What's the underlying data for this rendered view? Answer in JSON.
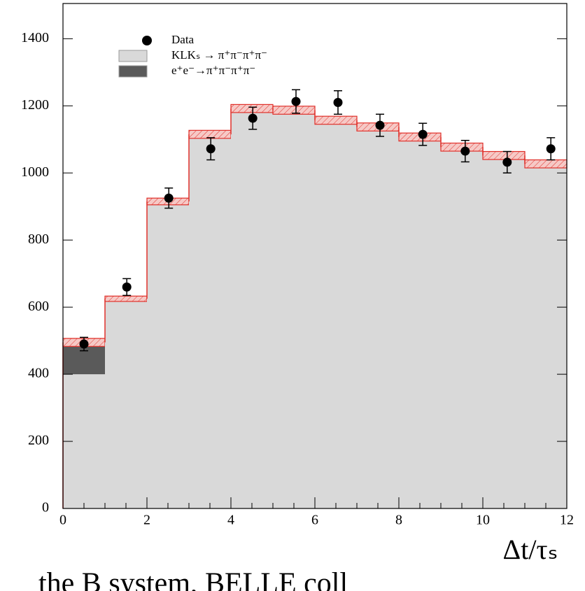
{
  "chart_data": {
    "type": "histogram",
    "bins": [
      0,
      1,
      2,
      3,
      4,
      5,
      6,
      7,
      8,
      9,
      10,
      11,
      12
    ],
    "series": [
      {
        "name": "KLKₛ → π⁺π⁻π⁺π⁻",
        "color": "#d9d9d9",
        "values": [
          400,
          625,
          915,
          1115,
          1192,
          1187,
          1157,
          1137,
          1107,
          1077,
          1052,
          1027
        ]
      },
      {
        "name": "e⁺e⁻→π⁺π⁻π⁺π⁻",
        "color": "#5a5a5a",
        "values": [
          95,
          0,
          0,
          0,
          0,
          0,
          0,
          0,
          0,
          0,
          0,
          0
        ]
      }
    ],
    "band_error": [
      12,
      8,
      10,
      12,
      12,
      12,
      12,
      12,
      12,
      12,
      12,
      12
    ],
    "band_color": "#e0302a",
    "data": {
      "name": "Data",
      "color": "#000000",
      "x": [
        0.5,
        1.52,
        2.52,
        3.52,
        4.52,
        5.55,
        6.55,
        7.55,
        8.57,
        9.58,
        10.58,
        11.62
      ],
      "values": [
        490,
        660,
        925,
        1072,
        1163,
        1213,
        1210,
        1142,
        1115,
        1065,
        1032,
        1072
      ],
      "errors": [
        20,
        25,
        30,
        33,
        33,
        35,
        35,
        33,
        33,
        32,
        32,
        33
      ]
    },
    "xlim": [
      0,
      12
    ],
    "ylim": [
      0,
      1505
    ],
    "xticks": [
      0,
      2,
      4,
      6,
      8,
      10,
      12
    ],
    "yticks": [
      0,
      200,
      400,
      600,
      800,
      1000,
      1200,
      1400
    ],
    "xlabel": "Δt/τₛ",
    "footer": "the B system, BELLE coll"
  }
}
